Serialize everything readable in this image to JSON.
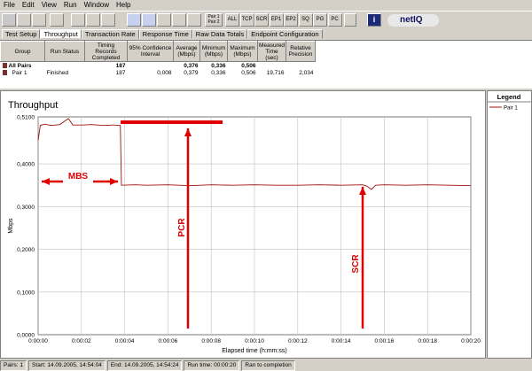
{
  "menu": [
    "File",
    "Edit",
    "View",
    "Run",
    "Window",
    "Help"
  ],
  "toolbar": {
    "buttons": [
      "ALL",
      "TCP",
      "SCR",
      "EP1",
      "EP2",
      "SQ",
      "PG",
      "PC"
    ],
    "pair_button": [
      "Pair 1",
      "Pair 2"
    ],
    "logo": "netIQ"
  },
  "tabs": [
    "Test Setup",
    "Throughput",
    "Transaction Rate",
    "Response Time",
    "Raw Data Totals",
    "Endpoint Configuration"
  ],
  "table": {
    "columns": [
      "Group",
      "Run Status",
      "Timing Records Completed",
      "95% Confidence Interval",
      "Average (Mbps)",
      "Minimum (Mbps)",
      "Maximum (Mbps)",
      "Measured Time (sec)",
      "Relative Precision"
    ],
    "rows": [
      [
        "All Pairs",
        null,
        "187",
        null,
        "0,376",
        "0,336",
        "0,506",
        null,
        null
      ],
      [
        "Pair 1",
        "Finished",
        "187",
        "0,008",
        "0,379",
        "0,336",
        "0,506",
        "19,716",
        "2,034"
      ]
    ]
  },
  "chart_data": {
    "type": "line",
    "title": "Throughput",
    "x_label": "Elapsed time (h:mm:ss)",
    "y_label": "Mbps",
    "legend_title": "Legend",
    "grid": true,
    "annotations": [
      "MBS",
      "PCR",
      "SCR"
    ],
    "xlim": [
      0,
      20
    ],
    "xticks": [
      {
        "value": 0,
        "label": "0:00:00"
      },
      {
        "value": 2,
        "label": "0:00:02"
      },
      {
        "value": 4,
        "label": "0:00:04"
      },
      {
        "value": 6,
        "label": "0:00:06"
      },
      {
        "value": 8,
        "label": "0:00:08"
      },
      {
        "value": 10,
        "label": "0:00:10"
      },
      {
        "value": 12,
        "label": "0:00:12"
      },
      {
        "value": 14,
        "label": "0:00:14"
      },
      {
        "value": 16,
        "label": "0:00:16"
      },
      {
        "value": 18,
        "label": "0:00:18"
      },
      {
        "value": 20,
        "label": "0:00:20"
      }
    ],
    "ylim": [
      0,
      0.51
    ],
    "yticks": [
      {
        "value": 0,
        "label": "0,0000"
      },
      {
        "value": 0.1,
        "label": "0,1000"
      },
      {
        "value": 0.2,
        "label": "0,2000"
      },
      {
        "value": 0.3,
        "label": "0,3000"
      },
      {
        "value": 0.4,
        "label": "0,4000"
      },
      {
        "value": 0.51,
        "label": "0,5100"
      }
    ],
    "x": [
      0,
      0.1,
      0.3,
      0.6,
      1,
      1.4,
      1.6,
      2,
      2.5,
      3,
      3.5,
      3.8,
      3.85,
      4.5,
      5,
      6,
      7,
      8,
      9,
      10,
      11,
      12,
      13,
      14,
      15,
      15.2,
      15.4,
      15.6,
      16,
      17,
      18,
      19,
      20
    ],
    "series": [
      {
        "name": "Pair 1",
        "color": "#a01010",
        "values": [
          0.455,
          0.49,
          0.493,
          0.49,
          0.492,
          0.506,
          0.491,
          0.491,
          0.492,
          0.49,
          0.491,
          0.49,
          0.35,
          0.351,
          0.35,
          0.351,
          0.349,
          0.351,
          0.35,
          0.351,
          0.35,
          0.35,
          0.351,
          0.35,
          0.351,
          0.348,
          0.34,
          0.35,
          0.351,
          0.35,
          0.351,
          0.35,
          0.349
        ]
      }
    ]
  },
  "status": [
    "Pairs: 1",
    "Start: 14.09.2005, 14:54:04",
    "End: 14.09.2005, 14:54:24",
    "Run time: 00:00:20",
    "Ran to completion"
  ]
}
